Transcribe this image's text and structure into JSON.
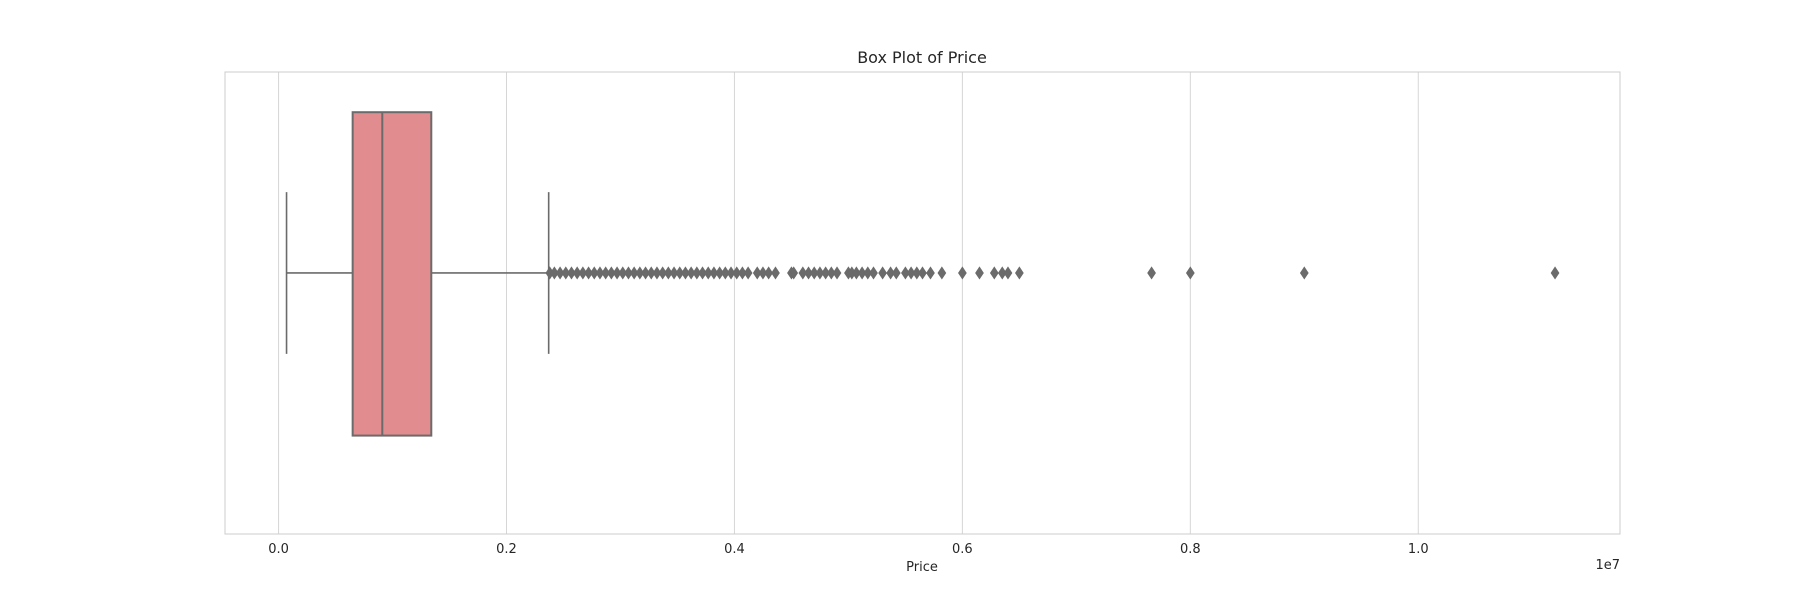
{
  "chart_data": {
    "type": "boxplot",
    "title": "Box Plot of Price",
    "xlabel": "Price",
    "ylabel": "",
    "scale_offset_label": "1e7",
    "xlim": [
      -0.047,
      1.177
    ],
    "x_ticks": [
      0.0,
      0.2,
      0.4,
      0.6,
      0.8,
      1.0
    ],
    "x_tick_labels": [
      "0.0",
      "0.2",
      "0.4",
      "0.6",
      "0.8",
      "1.0"
    ],
    "grid": true,
    "box_color": "#e18c8f",
    "line_color": "#6b6b6b",
    "grid_color": "#d6d6d6",
    "box": {
      "whisker_low": 0.007,
      "q1": 0.065,
      "median": 0.091,
      "q3": 0.134,
      "whisker_high": 0.237
    },
    "outliers": [
      0.238,
      0.242,
      0.247,
      0.252,
      0.257,
      0.262,
      0.267,
      0.272,
      0.277,
      0.282,
      0.287,
      0.292,
      0.297,
      0.302,
      0.307,
      0.312,
      0.317,
      0.322,
      0.327,
      0.332,
      0.337,
      0.342,
      0.347,
      0.352,
      0.357,
      0.362,
      0.367,
      0.372,
      0.377,
      0.382,
      0.387,
      0.392,
      0.397,
      0.402,
      0.407,
      0.412,
      0.42,
      0.425,
      0.43,
      0.436,
      0.45,
      0.452,
      0.46,
      0.465,
      0.47,
      0.475,
      0.48,
      0.485,
      0.49,
      0.5,
      0.503,
      0.507,
      0.512,
      0.517,
      0.522,
      0.53,
      0.537,
      0.542,
      0.55,
      0.555,
      0.56,
      0.565,
      0.572,
      0.582,
      0.6,
      0.615,
      0.628,
      0.635,
      0.64,
      0.65,
      0.766,
      0.8,
      0.9,
      1.12
    ]
  }
}
